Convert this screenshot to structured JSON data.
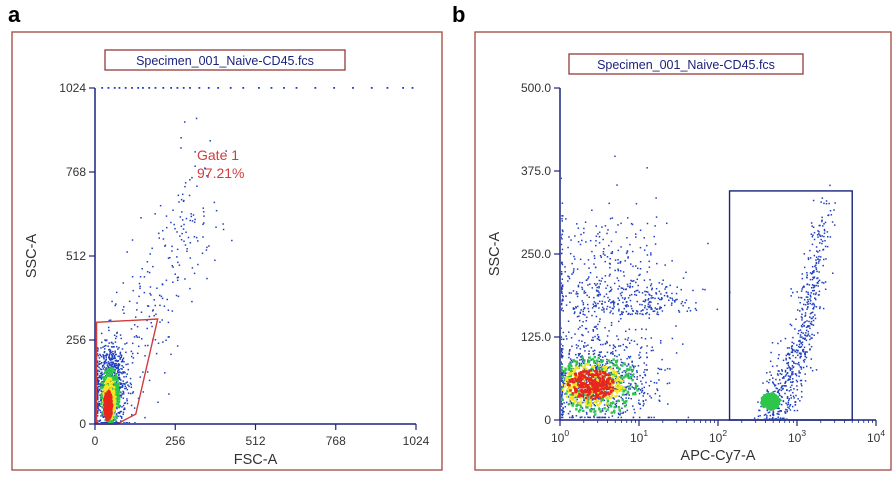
{
  "panels": [
    {
      "letter": "a"
    },
    {
      "letter": "b"
    }
  ],
  "chart_data": [
    {
      "type": "scatter",
      "subtype": "flow-cytometry density dot plot",
      "title": "Specimen_001_Naive-CD45.fcs",
      "xlabel": "FSC-A",
      "ylabel": "SSC-A",
      "xscale": "linear",
      "yscale": "linear",
      "xlim": [
        0,
        1024
      ],
      "ylim": [
        0,
        1024
      ],
      "xticks": [
        0,
        256,
        512,
        768,
        1024
      ],
      "yticks": [
        0,
        256,
        512,
        768,
        1024
      ],
      "xtick_labels": [
        "0",
        "256",
        "512",
        "768",
        "1024"
      ],
      "ytick_labels": [
        "0",
        "256",
        "512",
        "768",
        "1024"
      ],
      "grid": false,
      "colors": {
        "dots": "#1f3fbf",
        "frame": "#a0463c",
        "gate": "#d23c3c",
        "axis": "#1a237e",
        "density_hot": "#e8261e",
        "density_mid": "#f5e61e",
        "density_low": "#2ec64a"
      },
      "populations": [
        {
          "name": "main",
          "center": [
            45,
            110
          ],
          "spread": [
            25,
            70
          ],
          "count": 900
        },
        {
          "name": "tail",
          "center": [
            160,
            400
          ],
          "spread": [
            110,
            240
          ],
          "count": 260
        }
      ],
      "density_cores": [
        {
          "center": [
            45,
            90
          ],
          "radius": [
            30,
            90
          ],
          "level": "low"
        },
        {
          "center": [
            42,
            80
          ],
          "radius": [
            20,
            65
          ],
          "level": "mid"
        },
        {
          "center": [
            38,
            60
          ],
          "radius": [
            13,
            45
          ],
          "level": "hot"
        }
      ],
      "saturated_top_events_x": [
        20,
        40,
        60,
        75,
        95,
        115,
        135,
        150,
        170,
        190,
        215,
        240,
        260,
        280,
        300,
        330,
        360,
        390,
        430,
        470,
        520,
        560,
        600,
        640,
        700,
        760,
        820,
        880,
        930,
        980,
        1010
      ],
      "gates": [
        {
          "name": "Gate 1",
          "percent": "97.21%",
          "shape": "polygon",
          "vertices": [
            [
              5,
              0
            ],
            [
              5,
              310
            ],
            [
              200,
              320
            ],
            [
              130,
              30
            ],
            [
              70,
              0
            ]
          ]
        }
      ]
    },
    {
      "type": "scatter",
      "subtype": "flow-cytometry density dot plot",
      "title": "Specimen_001_Naive-CD45.fcs",
      "xlabel": "APC-Cy7-A",
      "ylabel": "SSC-A",
      "xscale": "log",
      "yscale": "linear",
      "xlim": [
        1,
        10000
      ],
      "ylim": [
        0,
        500
      ],
      "xticks": [
        1,
        10,
        100,
        1000,
        10000
      ],
      "xtick_labels": [
        [
          "10",
          "0"
        ],
        [
          "10",
          "1"
        ],
        [
          "10",
          "2"
        ],
        [
          "10",
          "3"
        ],
        [
          "10",
          "4"
        ]
      ],
      "yticks": [
        0,
        125,
        250,
        375,
        500
      ],
      "ytick_labels": [
        "0",
        "125.0",
        "250.0",
        "375.0",
        "500.0"
      ],
      "grid": false,
      "colors": {
        "dots": "#1f3fbf",
        "frame": "#a0463c",
        "gate": "#1a237e",
        "axis": "#1a237e",
        "density_hot": "#e8261e",
        "density_mid": "#f5e61e",
        "density_low": "#2ec64a"
      },
      "populations": [
        {
          "name": "negative",
          "center_log10": [
            0.45,
            55
          ],
          "spread": [
            0.45,
            110
          ],
          "count": 1100
        },
        {
          "name": "negative-sparse",
          "center_log10": [
            0.9,
            160
          ],
          "spread": [
            0.45,
            80
          ],
          "count": 300
        },
        {
          "name": "positive",
          "center_log10": [
            2.95,
            120
          ],
          "spread": [
            0.22,
            110
          ],
          "count": 650
        }
      ],
      "density_cores": [
        {
          "center_log10": [
            0.45,
            55
          ],
          "radius": [
            0.55,
            45
          ],
          "level": "low"
        },
        {
          "center_log10": [
            0.4,
            55
          ],
          "radius": [
            0.4,
            32
          ],
          "level": "mid"
        },
        {
          "center_log10": [
            0.38,
            55
          ],
          "radius": [
            0.3,
            22
          ],
          "level": "hot"
        },
        {
          "center_log10": [
            2.65,
            30
          ],
          "radius": [
            0.12,
            12
          ],
          "level": "low"
        }
      ],
      "gates": [
        {
          "name": "",
          "shape": "rectangle",
          "x_range": [
            140,
            5000
          ],
          "y_range": [
            0,
            345
          ]
        }
      ]
    }
  ]
}
